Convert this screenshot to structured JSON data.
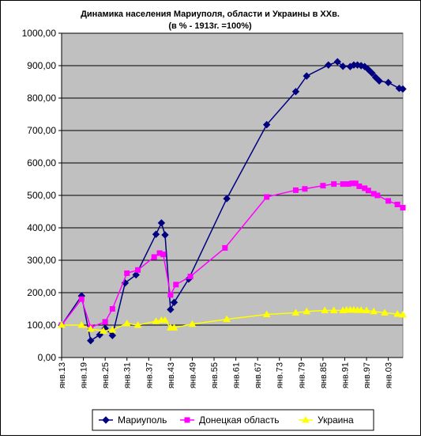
{
  "chart_data": {
    "type": "line",
    "title": "Динамика населения Мариуполя, области и Украины в ХХв.",
    "subtitle": "(в % - 1913г. =100%)",
    "xlabel": "",
    "ylabel": "",
    "ylim": [
      0,
      1000
    ],
    "yticks": [
      "0,00",
      "100,00",
      "200,00",
      "300,00",
      "400,00",
      "500,00",
      "600,00",
      "700,00",
      "800,00",
      "900,00",
      "1000,00"
    ],
    "xlim": [
      1913,
      2007
    ],
    "xticks": [
      {
        "year": 1913,
        "label": "янв.13"
      },
      {
        "year": 1919,
        "label": "янв.19"
      },
      {
        "year": 1925,
        "label": "янв.25"
      },
      {
        "year": 1931,
        "label": "янв.31"
      },
      {
        "year": 1937,
        "label": "янв.37"
      },
      {
        "year": 1943,
        "label": "янв.43"
      },
      {
        "year": 1949,
        "label": "янв.49"
      },
      {
        "year": 1955,
        "label": "янв.55"
      },
      {
        "year": 1961,
        "label": "янв.61"
      },
      {
        "year": 1967,
        "label": "янв.67"
      },
      {
        "year": 1973,
        "label": "янв.73"
      },
      {
        "year": 1979,
        "label": "янв.79"
      },
      {
        "year": 1985,
        "label": "янв.85"
      },
      {
        "year": 1991,
        "label": "янв.91"
      },
      {
        "year": 1997,
        "label": "янв.97"
      },
      {
        "year": 2003,
        "label": "янв.03"
      }
    ],
    "grid": true,
    "legend": "bottom",
    "plot_background": "#c0c0c0",
    "series": [
      {
        "name": "Мариуполь",
        "color": "#000080",
        "marker": "diamond",
        "points": [
          [
            1913,
            100
          ],
          [
            1918.5,
            190
          ],
          [
            1921,
            52
          ],
          [
            1923.5,
            70
          ],
          [
            1925,
            90
          ],
          [
            1927,
            68
          ],
          [
            1930.5,
            230
          ],
          [
            1933.5,
            255
          ],
          [
            1939,
            380
          ],
          [
            1940.5,
            415
          ],
          [
            1941.5,
            378
          ],
          [
            1943,
            148
          ],
          [
            1944,
            170
          ],
          [
            1948,
            242
          ],
          [
            1958.5,
            490
          ],
          [
            1969.5,
            718
          ],
          [
            1977.5,
            820
          ],
          [
            1980.5,
            868
          ],
          [
            1986.5,
            902
          ],
          [
            1989,
            912
          ],
          [
            1990.5,
            898
          ],
          [
            1992.5,
            897
          ],
          [
            1993.5,
            902
          ],
          [
            1994.5,
            902
          ],
          [
            1995.5,
            900
          ],
          [
            1996.5,
            897
          ],
          [
            1997.5,
            888
          ],
          [
            1998.5,
            877
          ],
          [
            1999.5,
            864
          ],
          [
            2000.5,
            853
          ],
          [
            2003,
            848
          ],
          [
            2006,
            830
          ],
          [
            2007,
            828
          ]
        ]
      },
      {
        "name": "Донецкая область",
        "color": "#ff00ff",
        "marker": "square",
        "points": [
          [
            1913,
            100
          ],
          [
            1918.5,
            180
          ],
          [
            1921,
            93
          ],
          [
            1925,
            110
          ],
          [
            1927,
            150
          ],
          [
            1931,
            260
          ],
          [
            1934,
            270
          ],
          [
            1938.5,
            310
          ],
          [
            1940,
            322
          ],
          [
            1941,
            318
          ],
          [
            1943,
            193
          ],
          [
            1944.5,
            225
          ],
          [
            1948.5,
            250
          ],
          [
            1958,
            338
          ],
          [
            1969.5,
            495
          ],
          [
            1977.5,
            516
          ],
          [
            1980,
            520
          ],
          [
            1985,
            530
          ],
          [
            1988,
            535
          ],
          [
            1990.5,
            535
          ],
          [
            1992,
            535
          ],
          [
            1993,
            537
          ],
          [
            1994,
            537
          ],
          [
            1995,
            528
          ],
          [
            1996.5,
            522
          ],
          [
            1997.5,
            515
          ],
          [
            1999,
            505
          ],
          [
            2000,
            500
          ],
          [
            2003,
            483
          ],
          [
            2005.5,
            472
          ],
          [
            2007,
            462
          ]
        ]
      },
      {
        "name": "Украина",
        "color": "#ffff00",
        "marker": "triangle",
        "points": [
          [
            1913,
            100
          ],
          [
            1918.5,
            100
          ],
          [
            1921,
            88
          ],
          [
            1924.5,
            82
          ],
          [
            1927,
            85
          ],
          [
            1931,
            105
          ],
          [
            1934,
            100
          ],
          [
            1939,
            112
          ],
          [
            1940.5,
            115
          ],
          [
            1941.5,
            115
          ],
          [
            1943,
            92
          ],
          [
            1944,
            92
          ],
          [
            1949,
            103
          ],
          [
            1958.5,
            118
          ],
          [
            1969.5,
            133
          ],
          [
            1977.5,
            138
          ],
          [
            1980.5,
            142
          ],
          [
            1985.5,
            145
          ],
          [
            1988,
            145
          ],
          [
            1990.5,
            145
          ],
          [
            1991.5,
            147
          ],
          [
            1992.5,
            147
          ],
          [
            1993.5,
            147
          ],
          [
            1994.5,
            146
          ],
          [
            1995.5,
            146
          ],
          [
            1997,
            145
          ],
          [
            1999,
            142
          ],
          [
            2002,
            138
          ],
          [
            2005.5,
            134
          ],
          [
            2007,
            132
          ]
        ]
      }
    ]
  }
}
